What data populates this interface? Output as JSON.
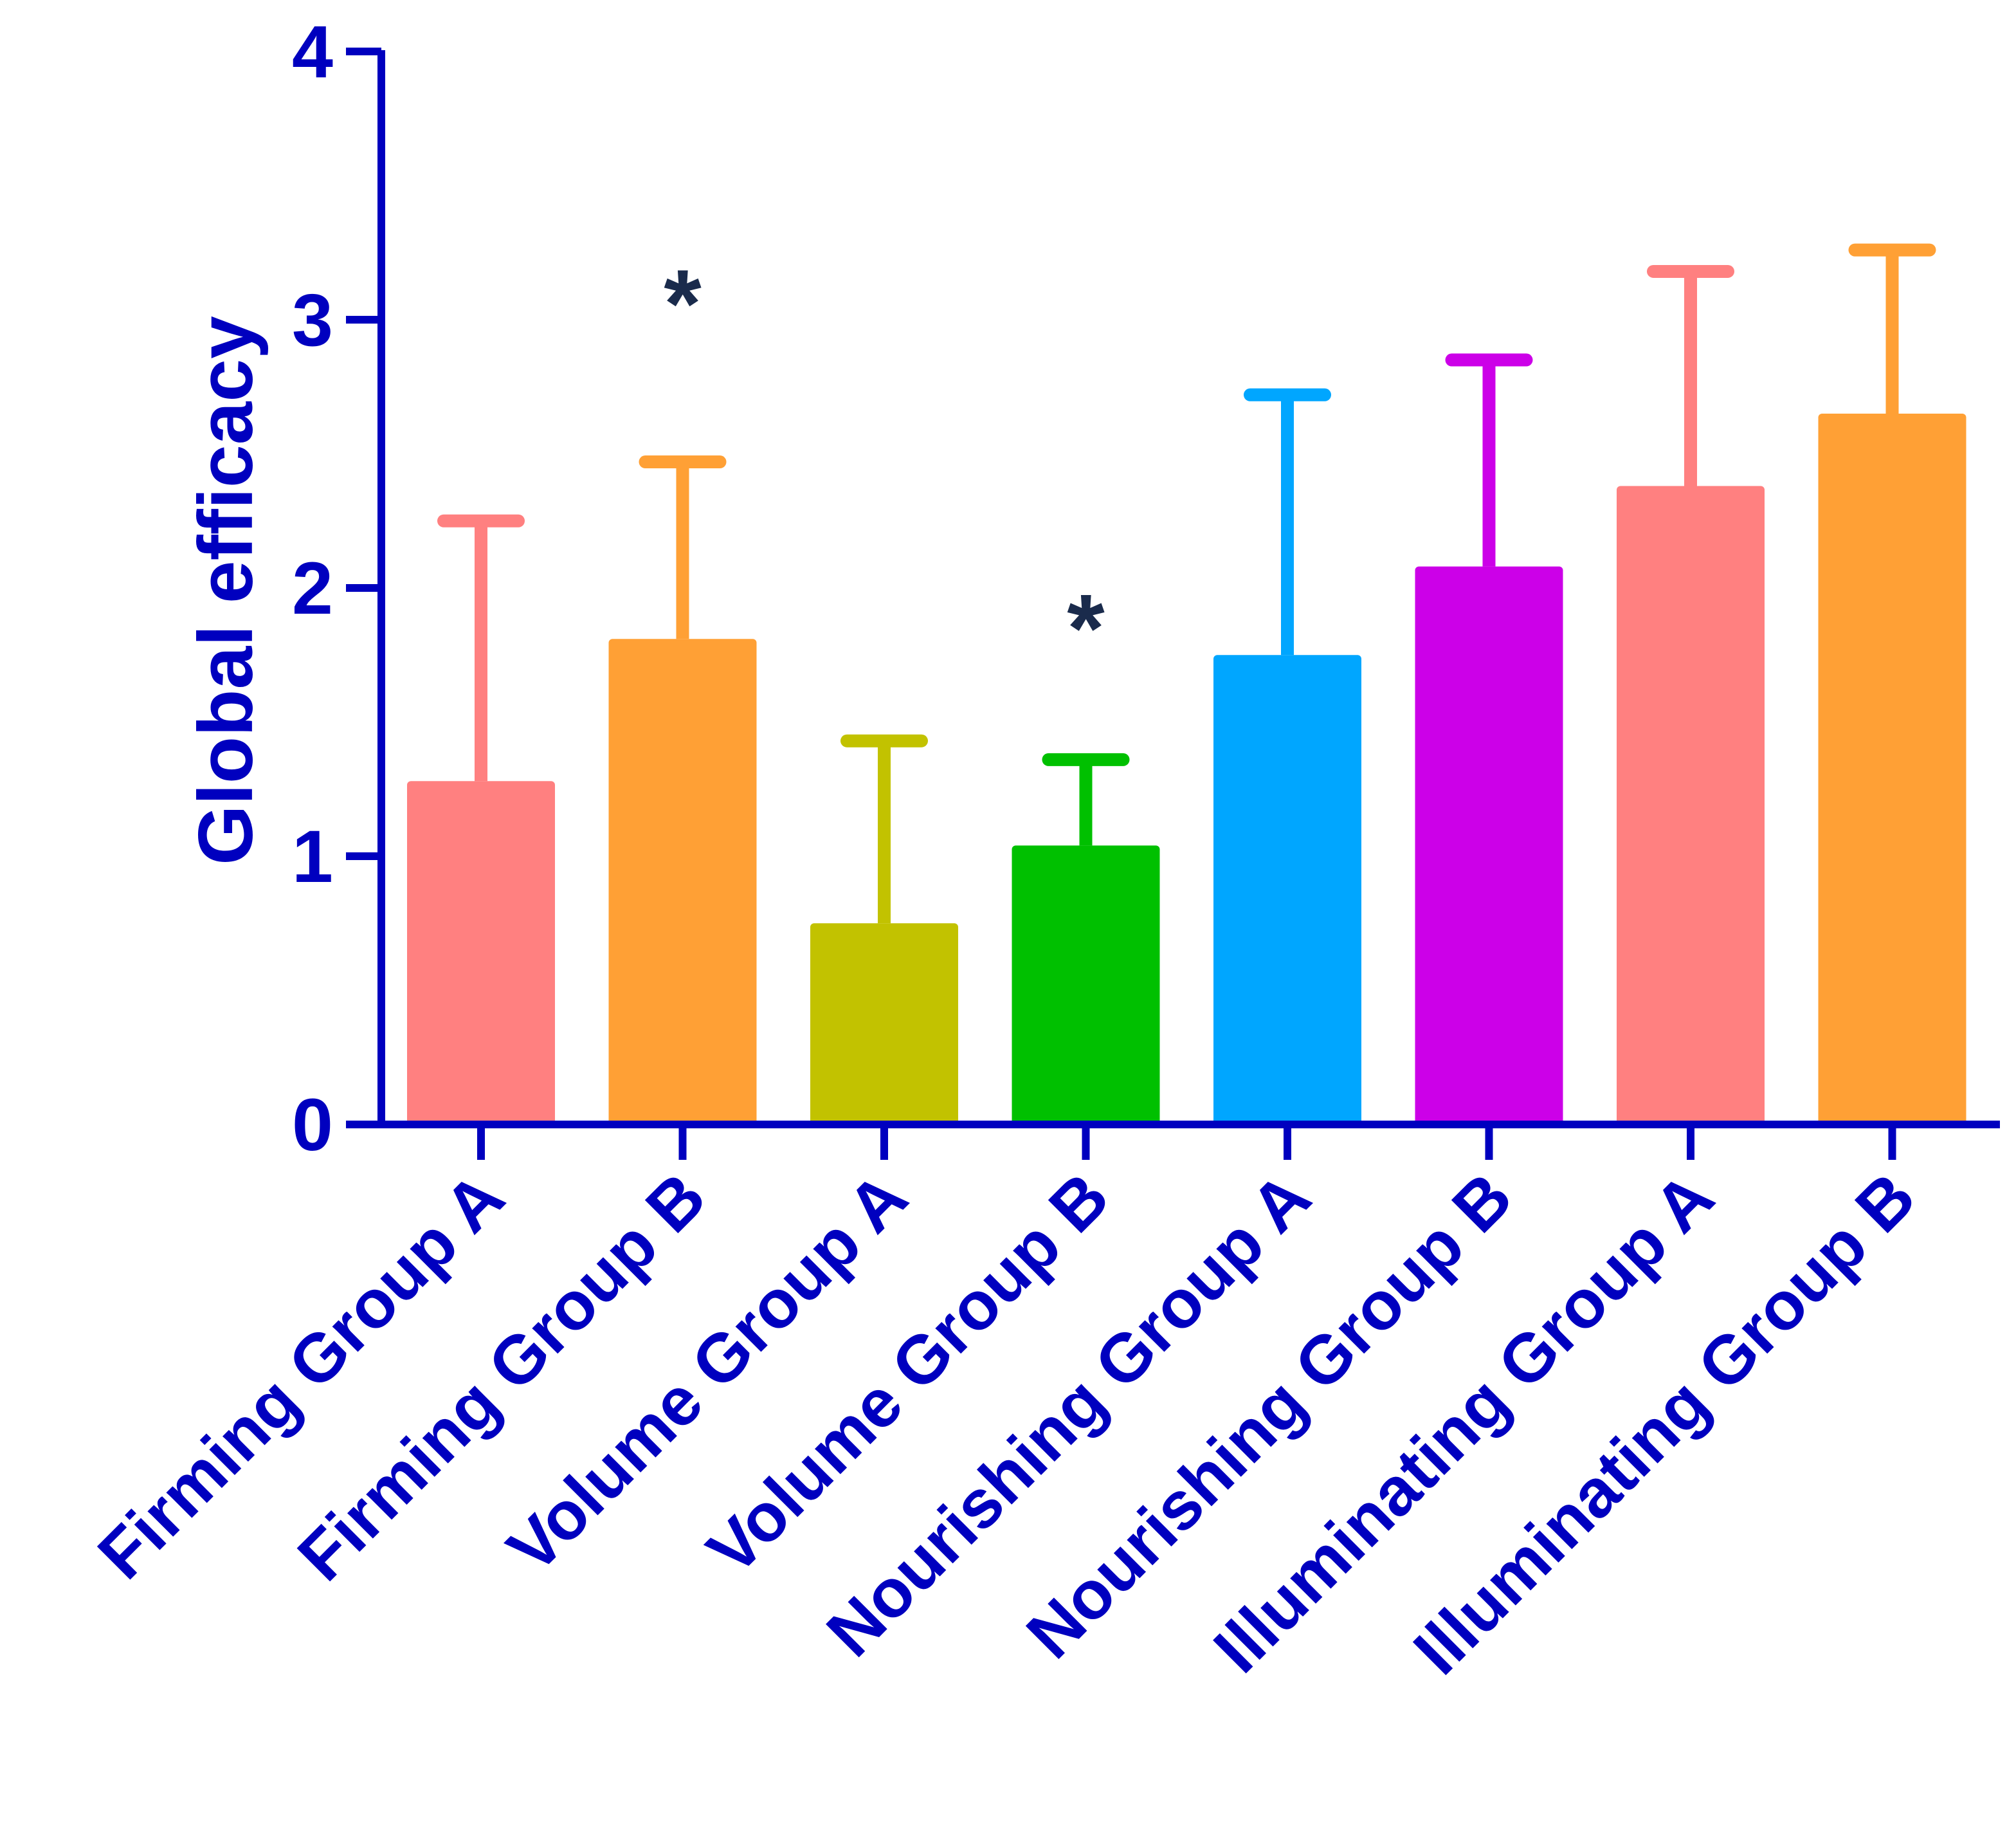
{
  "colors": {
    "axis": "#0000BF",
    "annotation": "#1A2B4C"
  },
  "chart_data": {
    "type": "bar",
    "title": "",
    "xlabel": "",
    "ylabel": "Global efficacy",
    "ylim": [
      0,
      4
    ],
    "yticks": [
      "0",
      "1",
      "2",
      "3",
      "4"
    ],
    "grid": false,
    "legend": "none",
    "categories": [
      "Firming Group A",
      "Firming Group B",
      "Volume Group A",
      "Volume Group B",
      "Nourishing Group A",
      "Nourishing Group B",
      "Illuminating Group A",
      "Illuminating Group B"
    ],
    "values": [
      1.28,
      1.81,
      0.75,
      1.04,
      1.75,
      2.08,
      2.38,
      2.65
    ],
    "error_upper": [
      2.25,
      2.47,
      1.43,
      1.36,
      2.72,
      2.85,
      3.18,
      3.26
    ],
    "bar_colors": [
      "#FF8080",
      "#FFA035",
      "#C2C200",
      "#00C000",
      "#00A6FF",
      "#CC00E8",
      "#FF8080",
      "#FFA035"
    ],
    "annotations": [
      {
        "category": "Firming Group B",
        "text": "*",
        "y": 3.08
      },
      {
        "category": "Volume Group B",
        "text": "*",
        "y": 1.87
      }
    ]
  }
}
